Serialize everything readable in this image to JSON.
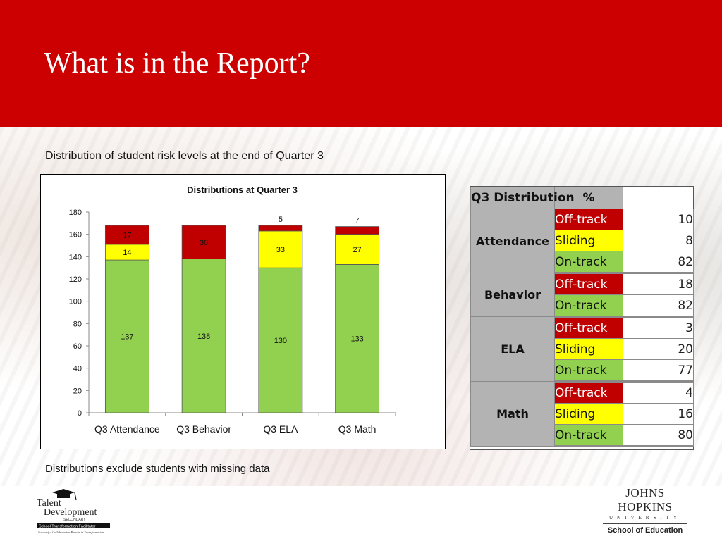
{
  "slide": {
    "title": "What is in the Report?",
    "caption_top": "Distribution of student risk levels at the end of Quarter 3",
    "caption_bottom": "Distributions exclude students with missing data"
  },
  "colors": {
    "header_red": "#cc0000",
    "on_track": "#92d050",
    "sliding": "#ffff00",
    "off_track": "#c00000"
  },
  "chart_data": {
    "type": "bar",
    "stacked": true,
    "title": "Distributions at Quarter 3",
    "xlabel": "",
    "ylabel": "",
    "ylim": [
      0,
      180
    ],
    "yticks": [
      0,
      20,
      40,
      60,
      80,
      100,
      120,
      140,
      160,
      180
    ],
    "grid": false,
    "legend": "none",
    "categories": [
      "Q3 Attendance",
      "Q3 Behavior",
      "Q3 ELA",
      "Q3 Math"
    ],
    "series": [
      {
        "color": "#92d050",
        "values": [
          137,
          138,
          130,
          133
        ]
      },
      {
        "color": "#ffff00",
        "values": [
          14,
          0,
          33,
          27
        ]
      },
      {
        "color": "#c00000",
        "values": [
          17,
          30,
          5,
          7
        ]
      }
    ]
  },
  "table": {
    "header": [
      "Q3 Distribution",
      "%"
    ],
    "groups": [
      {
        "name": "Attendance",
        "rows": [
          {
            "level": "Off-track",
            "value": "10",
            "color": "#c00000",
            "text_color": "#ffffff"
          },
          {
            "level": "Sliding",
            "value": "8",
            "color": "#ffff00",
            "text_color": "#111111"
          },
          {
            "level": "On-track",
            "value": "82",
            "color": "#92d050",
            "text_color": "#111111"
          }
        ]
      },
      {
        "name": "Behavior",
        "rows": [
          {
            "level": "Off-track",
            "value": "18",
            "color": "#c00000",
            "text_color": "#ffffff"
          },
          {
            "level": "On-track",
            "value": "82",
            "color": "#92d050",
            "text_color": "#111111"
          }
        ]
      },
      {
        "name": "ELA",
        "rows": [
          {
            "level": "Off-track",
            "value": "3",
            "color": "#c00000",
            "text_color": "#ffffff"
          },
          {
            "level": "Sliding",
            "value": "20",
            "color": "#ffff00",
            "text_color": "#111111"
          },
          {
            "level": "On-track",
            "value": "77",
            "color": "#92d050",
            "text_color": "#111111"
          }
        ]
      },
      {
        "name": "Math",
        "rows": [
          {
            "level": "Off-track",
            "value": "4",
            "color": "#c00000",
            "text_color": "#ffffff"
          },
          {
            "level": "Sliding",
            "value": "16",
            "color": "#ffff00",
            "text_color": "#111111"
          },
          {
            "level": "On-track",
            "value": "80",
            "color": "#92d050",
            "text_color": "#111111"
          }
        ]
      }
    ]
  },
  "logos": {
    "talent_development": {
      "line1": "Talent",
      "line2": "Development",
      "line3": "SECONDARY",
      "line4": "School Transformation Facilitator",
      "line5": "Successful Collaboration Results in Transformation"
    },
    "jhu": {
      "name": "JOHNS HOPKINS",
      "univ": "UNIVERSITY",
      "school": "School of Education"
    }
  }
}
